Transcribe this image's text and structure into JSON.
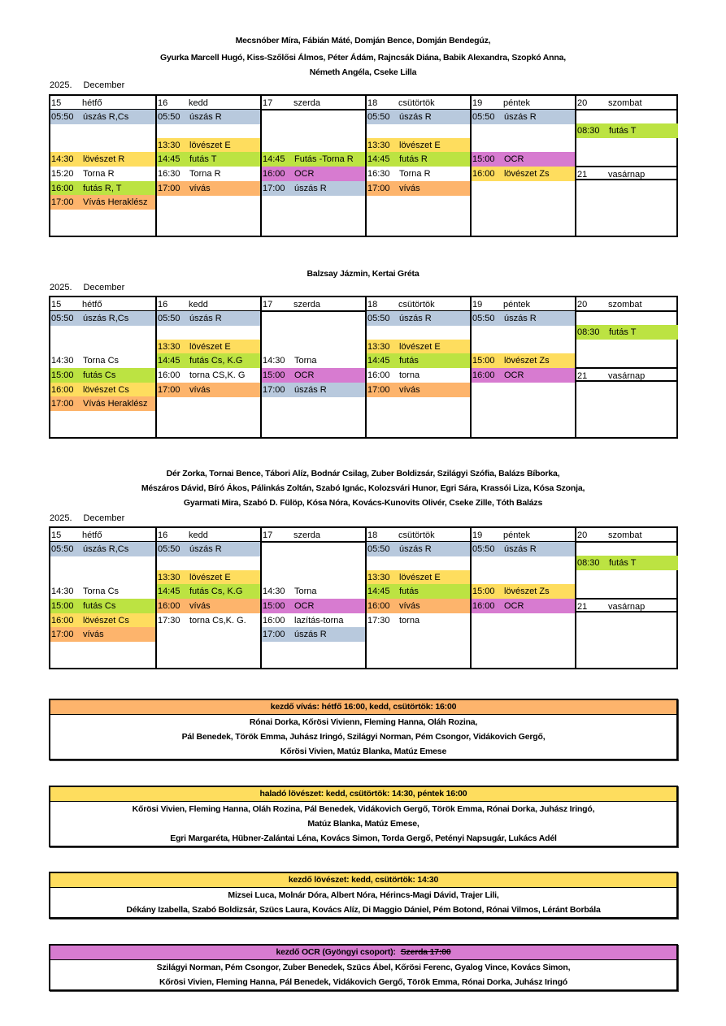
{
  "colors": {
    "blue": "#b8c9dd",
    "green": "#bce342",
    "yellow": "#fedd5e",
    "orange": "#fdb46c",
    "purple": "#d77bd0",
    "white": "#ffffff"
  },
  "sections": [
    {
      "names": [
        "Mecsnóber Míra, Fábián Máté, Domján Bence, Domján Bendegúz,",
        "Gyurka Marcell Hugó, Kiss-Szőlősi Álmos, Péter Ádám, Rajncsák Diána, Babik Alexandra, Szopkó Anna,",
        "Németh Angéla, Cseke Lilla"
      ],
      "year": "2025.",
      "month": "December",
      "days": [
        {
          "num": "15",
          "name": "hétfő",
          "slots": [
            {
              "time": "05:50",
              "activity": "úszás R,Cs",
              "color": "blue"
            },
            null,
            null,
            {
              "time": "14:30",
              "activity": "lövészet R",
              "color": "yellow"
            },
            {
              "time": "15:20",
              "activity": "Torna R",
              "color": "white"
            },
            {
              "time": "16:00",
              "activity": "futás R, T",
              "color": "green"
            },
            {
              "time": "17:00",
              "activity": "Vívás Heraklész",
              "color": "orange"
            },
            null,
            null
          ]
        },
        {
          "num": "16",
          "name": "kedd",
          "slots": [
            {
              "time": "05:50",
              "activity": "úszás R",
              "color": "blue"
            },
            null,
            {
              "time": "13:30",
              "activity": "lövészet E",
              "color": "yellow"
            },
            {
              "time": "14:45",
              "activity": "futás T",
              "color": "green"
            },
            {
              "time": "16:30",
              "activity": "Torna R",
              "color": "white"
            },
            {
              "time": "17:00",
              "activity": "vívás",
              "color": "orange"
            },
            null,
            null,
            null
          ]
        },
        {
          "num": "17",
          "name": "szerda",
          "slots": [
            null,
            null,
            null,
            {
              "time": "14:45",
              "activity": "Futás -Torna R",
              "color": "green"
            },
            {
              "time": "16:00",
              "activity": "OCR",
              "color": "purple"
            },
            {
              "time": "17:00",
              "activity": "úszás R",
              "color": "blue"
            },
            null,
            null,
            null
          ]
        },
        {
          "num": "18",
          "name": "csütörtök",
          "slots": [
            {
              "time": "05:50",
              "activity": "úszás R",
              "color": "blue"
            },
            null,
            {
              "time": "13:30",
              "activity": "lövészet E",
              "color": "yellow"
            },
            {
              "time": "14:45",
              "activity": "futás R",
              "color": "green"
            },
            {
              "time": "16:30",
              "activity": "Torna R",
              "color": "white"
            },
            {
              "time": "17:00",
              "activity": "vívás",
              "color": "orange"
            },
            null,
            null,
            null
          ]
        },
        {
          "num": "19",
          "name": "péntek",
          "slots": [
            {
              "time": "05:50",
              "activity": "úszás R",
              "color": "blue"
            },
            null,
            null,
            {
              "time": "15:00",
              "activity": "OCR",
              "color": "purple"
            },
            {
              "time": "16:00",
              "activity": "lövészet Zs",
              "color": "yellow"
            },
            null,
            null,
            null,
            null
          ]
        },
        {
          "num": "20",
          "name": "szombat",
          "sunday_num": "21",
          "sunday_name": "vasárnap",
          "slots": [
            null,
            {
              "time": "08:30",
              "activity": "futás T",
              "color": "green"
            },
            null,
            null
          ]
        }
      ]
    },
    {
      "names": [
        "Balzsay Jázmin, Kertai Gréta"
      ],
      "year": "2025.",
      "month": "December",
      "days": [
        {
          "num": "15",
          "name": "hétfő",
          "slots": [
            {
              "time": "05:50",
              "activity": "úszás R,Cs",
              "color": "blue"
            },
            null,
            null,
            {
              "time": "14:30",
              "activity": "Torna Cs",
              "color": "white"
            },
            {
              "time": "15:00",
              "activity": "futás Cs",
              "color": "green"
            },
            {
              "time": "16:00",
              "activity": "lövészet Cs",
              "color": "yellow"
            },
            {
              "time": "17:00",
              "activity": "Vívás Heraklész",
              "color": "orange"
            },
            null,
            null
          ]
        },
        {
          "num": "16",
          "name": "kedd",
          "slots": [
            {
              "time": "05:50",
              "activity": "úszás R",
              "color": "blue"
            },
            null,
            {
              "time": "13:30",
              "activity": "lövészet E",
              "color": "yellow"
            },
            {
              "time": "14:45",
              "activity": "futás Cs, K.G",
              "color": "green"
            },
            {
              "time": "16:00",
              "activity": "torna CS,K. G",
              "color": "white"
            },
            {
              "time": "17:00",
              "activity": "vívás",
              "color": "orange"
            },
            null,
            null,
            null
          ]
        },
        {
          "num": "17",
          "name": "szerda",
          "slots": [
            null,
            null,
            null,
            {
              "time": "14:30",
              "activity": "Torna",
              "color": "white"
            },
            {
              "time": "15:00",
              "activity": "OCR",
              "color": "purple"
            },
            {
              "time": "17:00",
              "activity": "úszás R",
              "color": "blue"
            },
            null,
            null,
            null
          ]
        },
        {
          "num": "18",
          "name": "csütörtök",
          "slots": [
            {
              "time": "05:50",
              "activity": "úszás R",
              "color": "blue"
            },
            null,
            {
              "time": "13:30",
              "activity": "lövészet E",
              "color": "yellow"
            },
            {
              "time": "14:45",
              "activity": "futás",
              "color": "green"
            },
            {
              "time": "16:00",
              "activity": "torna",
              "color": "white"
            },
            {
              "time": "17:00",
              "activity": "vívás",
              "color": "orange"
            },
            null,
            null,
            null
          ]
        },
        {
          "num": "19",
          "name": "péntek",
          "slots": [
            {
              "time": "05:50",
              "activity": "úszás R",
              "color": "blue"
            },
            null,
            null,
            {
              "time": "15:00",
              "activity": "lövészet Zs",
              "color": "yellow"
            },
            {
              "time": "16:00",
              "activity": "OCR",
              "color": "purple"
            },
            null,
            null,
            null,
            null
          ]
        },
        {
          "num": "20",
          "name": "szombat",
          "sunday_num": "21",
          "sunday_name": "vasárnap",
          "slots": [
            null,
            {
              "time": "08:30",
              "activity": "futás T",
              "color": "green"
            },
            null,
            null
          ]
        }
      ]
    },
    {
      "names": [
        "Dér Zorka, Tornai Bence, Tábori Alíz, Bodnár Csilag, Zuber Boldizsár, Szilágyi Szófia, Balázs Bíborka,",
        "Mészáros Dávid, Bíró Ákos, Pálinkás Zoltán, Szabó Ignác, Kolozsvári Hunor, Egri Sára, Krassói Liza, Kósa Szonja,",
        "Gyarmati Mira, Szabó D. Fülöp, Kósa Nóra, Kovács-Kunovits Olivér, Cseke Zille, Tóth Balázs"
      ],
      "year": "2025.",
      "month": "December",
      "days": [
        {
          "num": "15",
          "name": "hétfő",
          "slots": [
            {
              "time": "05:50",
              "activity": "úszás R,Cs",
              "color": "blue"
            },
            null,
            null,
            {
              "time": "14:30",
              "activity": "Torna Cs",
              "color": "white"
            },
            {
              "time": "15:00",
              "activity": "futás Cs",
              "color": "green"
            },
            {
              "time": "16:00",
              "activity": "lövészet Cs",
              "color": "yellow"
            },
            {
              "time": "17:00",
              "activity": "vívás",
              "color": "orange"
            },
            null,
            null
          ]
        },
        {
          "num": "16",
          "name": "kedd",
          "slots": [
            {
              "time": "05:50",
              "activity": "úszás R",
              "color": "blue"
            },
            null,
            {
              "time": "13:30",
              "activity": "lövészet E",
              "color": "yellow"
            },
            {
              "time": "14:45",
              "activity": "futás Cs, K.G",
              "color": "green"
            },
            {
              "time": "16:00",
              "activity": "vívás",
              "color": "orange"
            },
            {
              "time": "17:30",
              "activity": "torna Cs,K. G.",
              "color": "white"
            },
            null,
            null,
            null
          ]
        },
        {
          "num": "17",
          "name": "szerda",
          "slots": [
            null,
            null,
            null,
            {
              "time": "14:30",
              "activity": "Torna",
              "color": "white"
            },
            {
              "time": "15:00",
              "activity": "OCR",
              "color": "purple"
            },
            {
              "time": "16:00",
              "activity": "lazítás-torna",
              "color": "white"
            },
            {
              "time": "17:00",
              "activity": "úszás R",
              "color": "blue"
            },
            null,
            null
          ]
        },
        {
          "num": "18",
          "name": "csütörtök",
          "slots": [
            {
              "time": "05:50",
              "activity": "úszás R",
              "color": "blue"
            },
            null,
            {
              "time": "13:30",
              "activity": "lövészet E",
              "color": "yellow"
            },
            {
              "time": "14:45",
              "activity": "futás",
              "color": "green"
            },
            {
              "time": "16:00",
              "activity": "vívás",
              "color": "orange"
            },
            {
              "time": "17:30",
              "activity": "torna",
              "color": "white"
            },
            null,
            null,
            null
          ]
        },
        {
          "num": "19",
          "name": "péntek",
          "slots": [
            {
              "time": "05:50",
              "activity": "úszás R",
              "color": "blue"
            },
            null,
            null,
            {
              "time": "15:00",
              "activity": "lövészet Zs",
              "color": "yellow"
            },
            {
              "time": "16:00",
              "activity": "OCR",
              "color": "purple"
            },
            null,
            null,
            null,
            null
          ]
        },
        {
          "num": "20",
          "name": "szombat",
          "sunday_num": "21",
          "sunday_name": "vasárnap",
          "slots": [
            null,
            {
              "time": "08:30",
              "activity": "futás T",
              "color": "green"
            },
            null,
            null
          ]
        }
      ]
    }
  ],
  "groups": [
    {
      "title": "kezdő vívás: hétfő 16:00,    kedd, csütörtök: 16:00",
      "color": "orange",
      "lines": [
        "Rónai Dorka, Kőrösi Vivienn, Fleming Hanna, Oláh Rozina,",
        "Pál Benedek, Török Emma, Juhász Iringó, Szilágyi Norman, Pém Csongor, Vidákovich Gergő,",
        "Kőrösi Vivien, Matúz Blanka, Matúz Emese"
      ]
    },
    {
      "title": "haladó lövészet: kedd, csütörtök: 14:30,   péntek 16:00",
      "color": "yellow",
      "lines": [
        "Kőrösi Vivien, Fleming Hanna, Oláh Rozina, Pál Benedek, Vidákovich Gergő, Török Emma, Rónai Dorka, Juhász Iringó,",
        "Matúz Blanka, Matúz Emese,",
        "Egri Margaréta, Hübner-Zalántai Léna, Kovács Simon, Torda Gergő, Petényi Napsugár, Lukács Adél"
      ]
    },
    {
      "title": "kezdő lövészet: kedd, csütörtök: 14:30",
      "color": "yellow",
      "lines": [
        "Mizsei Luca, Molnár Dóra, Albert Nóra, Hérincs-Magi Dávid, Trajer Lili,",
        "Dékány Izabella, Szabó Boldizsár, Szücs Laura, Kovács Alíz, Di Maggio Dániel, Pém Botond, Rónai Vilmos, Léránt Borbála"
      ]
    },
    {
      "title": "kezdő OCR (Gyöngyi csoport):",
      "struck": "Szerda 17:00",
      "color": "purple",
      "lines": [
        "Szilágyi Norman, Pém Csongor, Zuber Benedek, Szücs Ábel, Kőrösi Ferenc, Gyalog Vince, Kovács Simon,",
        "Kőrösi Vivien, Fleming Hanna, Pál Benedek, Vidákovich Gergő, Török Emma, Rónai Dorka, Juhász Iringó"
      ]
    }
  ]
}
